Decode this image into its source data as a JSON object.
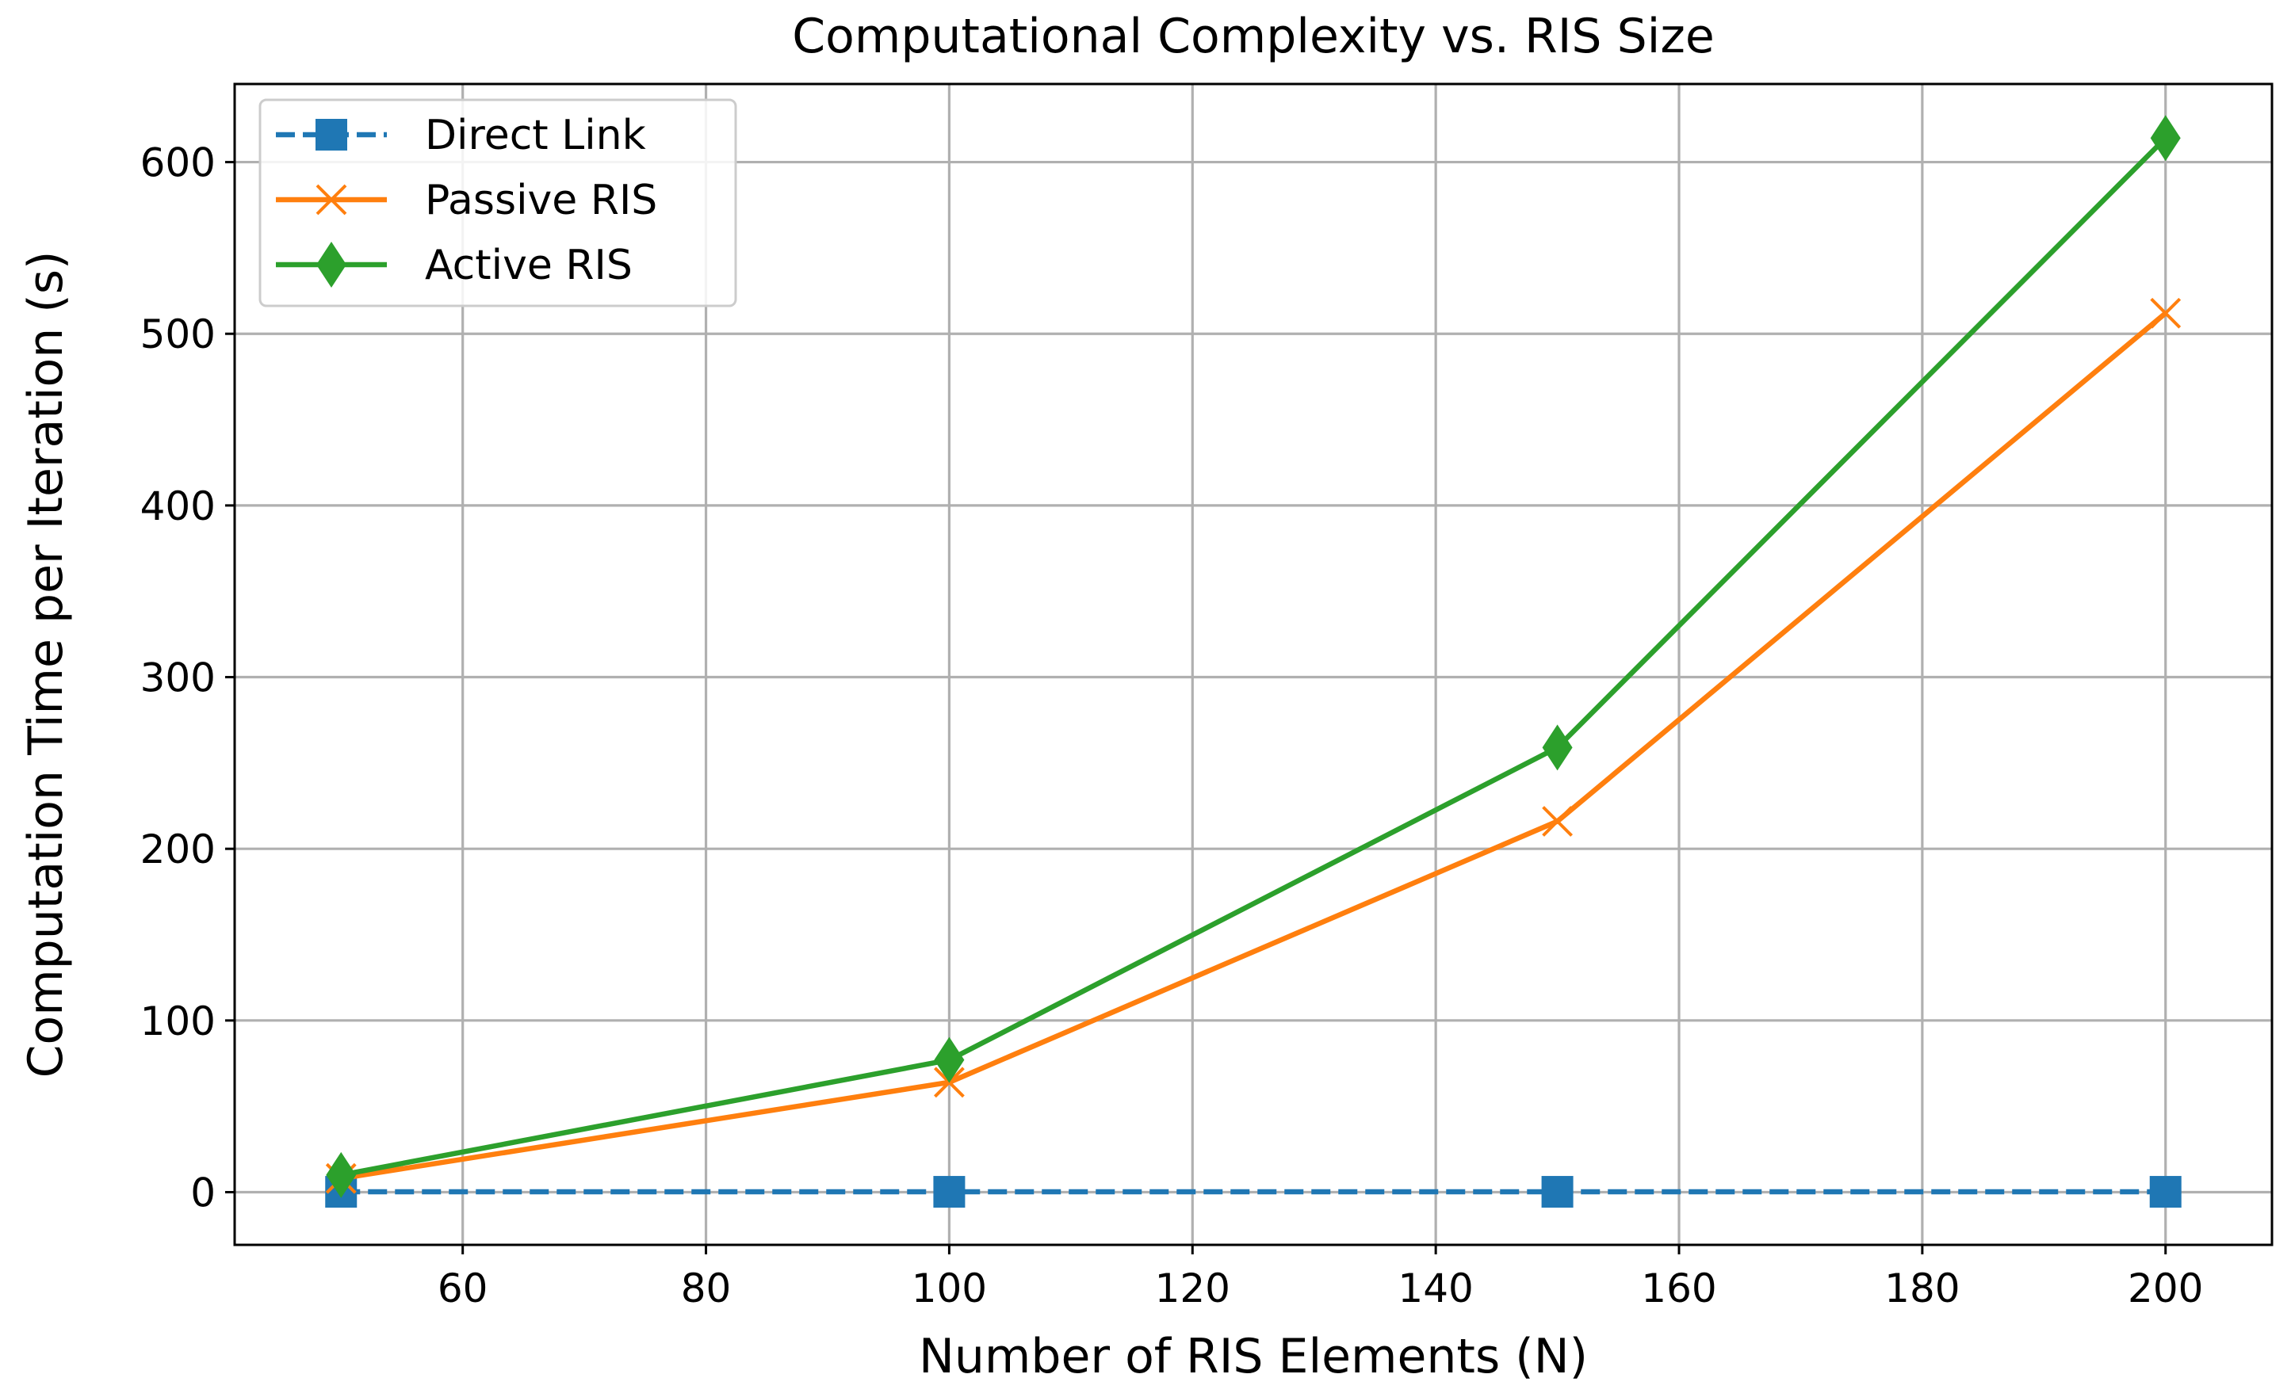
{
  "chart_data": {
    "type": "line",
    "title": "Computational Complexity vs. RIS Size",
    "xlabel": "Number of RIS Elements (N)",
    "ylabel": "Computation Time per Iteration (s)",
    "xlim": [
      41.25,
      208.75
    ],
    "ylim": [
      -30.7,
      645.5
    ],
    "xticks": [
      60,
      80,
      100,
      120,
      140,
      160,
      180,
      200
    ],
    "xtick_labels": [
      "60",
      "80",
      "100",
      "120",
      "140",
      "160",
      "180",
      "200"
    ],
    "yticks": [
      0,
      100,
      200,
      300,
      400,
      500,
      600
    ],
    "ytick_labels": [
      "0",
      "100",
      "200",
      "300",
      "400",
      "500",
      "600"
    ],
    "grid": true,
    "legend_position": "top-left",
    "x": [
      50,
      100,
      150,
      200
    ],
    "series": [
      {
        "name": "Direct Link",
        "values": [
          0.2,
          0.2,
          0.2,
          0.2
        ],
        "color": "#1f77b4",
        "marker": "square",
        "linestyle": "dashed"
      },
      {
        "name": "Passive RIS",
        "values": [
          8,
          64,
          216,
          512
        ],
        "color": "#ff7f0e",
        "marker": "x",
        "linestyle": "solid"
      },
      {
        "name": "Active RIS",
        "values": [
          10,
          77,
          259,
          614
        ],
        "color": "#2ca02c",
        "marker": "diamond",
        "linestyle": "solid"
      }
    ]
  }
}
